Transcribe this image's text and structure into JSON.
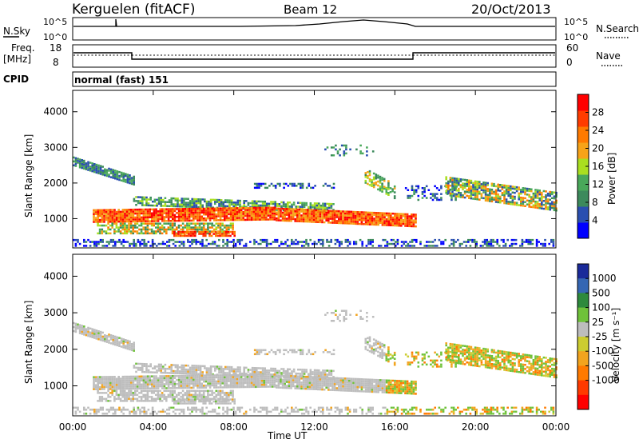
{
  "header": {
    "station": "Kerguelen (fitACF)",
    "beam": "Beam 12",
    "date": "20/Oct/2013"
  },
  "strips": {
    "nsky_label": "N.Sky",
    "nsky_ticks": [
      "10^5",
      "10^0"
    ],
    "nsearch_label": "N.Search",
    "freq_label_1": "Freq.",
    "freq_label_2": "[MHz]",
    "freq_ticks": [
      "18",
      "8"
    ],
    "nave_label": "Nave",
    "nave_ticks": [
      "60",
      "0"
    ],
    "cpid_label": "CPID",
    "cpid_value": "normal (fast) 151"
  },
  "colors": {
    "power_scale": [
      "#0000ff",
      "#2a4fb0",
      "#3c8a5c",
      "#49a85a",
      "#aadf20",
      "#f7a318",
      "#ff7a00",
      "#ff3c00",
      "#ff0000"
    ],
    "velocity_scale": [
      "#1a2a9a",
      "#3566b3",
      "#2e8a3c",
      "#6fc23a",
      "#bdbdbd",
      "#cccc30",
      "#f2a41e",
      "#ff7a00",
      "#ff3a00",
      "#ff0000"
    ]
  },
  "chart_data": [
    {
      "type": "heatmap",
      "title": "",
      "xlabel": "Time UT",
      "ylabel": "Slant Range [km]",
      "xlim": [
        "00:00",
        "24:00"
      ],
      "ylim": [
        180,
        4600
      ],
      "x_ticks": [
        "00:00",
        "04:00",
        "08:00",
        "12:00",
        "16:00",
        "20:00",
        "00:00"
      ],
      "y_ticks": [
        1000,
        2000,
        3000,
        4000
      ],
      "colorbar_label": "Power [dB]",
      "colorbar_ticks": [
        "28",
        "24",
        "20",
        "16",
        "12",
        "8",
        "4"
      ],
      "colorbar_range": [
        0,
        32
      ]
    },
    {
      "type": "heatmap",
      "title": "",
      "xlabel": "Time UT",
      "ylabel": "Slant Range [km]",
      "xlim": [
        "00:00",
        "24:00"
      ],
      "ylim": [
        180,
        4600
      ],
      "x_ticks": [
        "00:00",
        "04:00",
        "08:00",
        "12:00",
        "16:00",
        "20:00",
        "00:00"
      ],
      "y_ticks": [
        1000,
        2000,
        3000,
        4000
      ],
      "colorbar_label": "Velocity [m s⁻¹]",
      "colorbar_ticks": [
        "1000",
        "500",
        "100",
        "25",
        "-25",
        "-100",
        "-500",
        "-1000"
      ]
    }
  ]
}
